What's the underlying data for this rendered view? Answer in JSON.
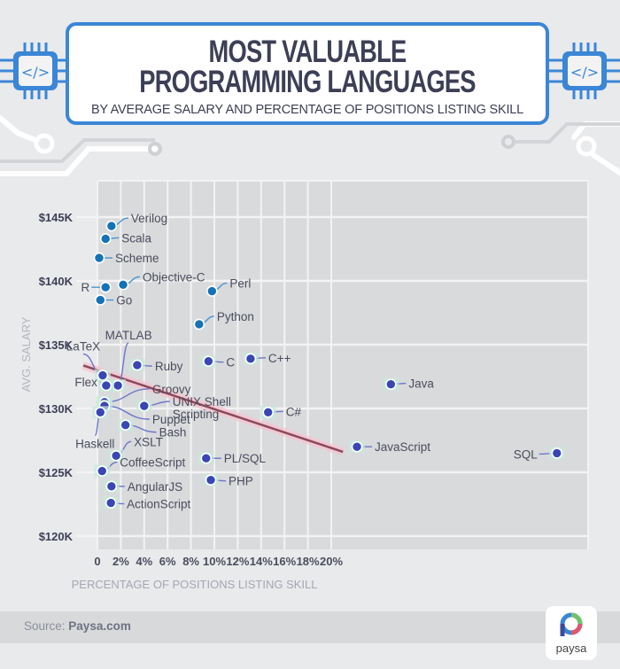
{
  "header": {
    "title_line1": "MOST VALUABLE",
    "title_line2": "PROGRAMMING LANGUAGES",
    "subtitle": "BY AVERAGE SALARY AND PERCENTAGE OF POSITIONS LISTING SKILL",
    "chip_icon_label": "</>"
  },
  "footer": {
    "source_prefix": "Source:",
    "source_name": "Paysa.com",
    "logo_text": "paysa"
  },
  "colors": {
    "accent": "#3b86d6",
    "title": "#3c3f55",
    "dot_light": "#1572b6",
    "dot_dark": "#3a46b3",
    "trendline": "#8a4a5c",
    "trend_glow": "#f6c4d2",
    "plot_bg": "#d9dadc",
    "grid": "#f3f3f4"
  },
  "chart_data": {
    "type": "scatter",
    "title": "Most Valuable Programming Languages",
    "subtitle": "By average salary and percentage of positions listing skill",
    "xlabel": "PERCENTAGE OF POSITIONS LISTING SKILL",
    "ylabel": "AVG. SALARY",
    "xlim": [
      0,
      21
    ],
    "ylim": [
      120,
      147
    ],
    "x_ticks": [
      0,
      2,
      4,
      6,
      8,
      10,
      12,
      14,
      16,
      18,
      20
    ],
    "x_tick_labels": [
      "0",
      "2%",
      "4%",
      "6%",
      "8%",
      "10%",
      "12%",
      "14%",
      "16%",
      "18%",
      "20%"
    ],
    "y_ticks": [
      120,
      125,
      130,
      135,
      140,
      145
    ],
    "y_tick_labels": [
      "$120K",
      "$125K",
      "$130K",
      "$135K",
      "$140K",
      "$145K"
    ],
    "grid": true,
    "points": [
      {
        "name": "Verilog",
        "x": 1.2,
        "y": 144.3
      },
      {
        "name": "Scala",
        "x": 0.7,
        "y": 143.3
      },
      {
        "name": "Scheme",
        "x": 0.15,
        "y": 141.8
      },
      {
        "name": "Objective-C",
        "x": 2.2,
        "y": 139.7
      },
      {
        "name": "R",
        "x": 0.7,
        "y": 139.5
      },
      {
        "name": "Perl",
        "x": 9.8,
        "y": 139.2
      },
      {
        "name": "Go",
        "x": 0.25,
        "y": 138.5
      },
      {
        "name": "Python",
        "x": 8.7,
        "y": 136.6
      },
      {
        "name": "C",
        "x": 9.5,
        "y": 133.7
      },
      {
        "name": "C++",
        "x": 13.1,
        "y": 133.9
      },
      {
        "name": "Ruby",
        "x": 3.4,
        "y": 133.4
      },
      {
        "name": "LaTeX",
        "x": 0.45,
        "y": 132.6
      },
      {
        "name": "MATLAB",
        "x": 1.75,
        "y": 131.8
      },
      {
        "name": "Flex",
        "x": 0.75,
        "y": 131.8
      },
      {
        "name": "Java",
        "x": 25.1,
        "y": 131.9
      },
      {
        "name": "Groovy",
        "x": 0.6,
        "y": 130.5
      },
      {
        "name": "Puppet",
        "x": 0.6,
        "y": 130.2
      },
      {
        "name": "UNIX Shell Scripting",
        "x": 4.0,
        "y": 130.2
      },
      {
        "name": "Haskell",
        "x": 0.25,
        "y": 129.7
      },
      {
        "name": "C#",
        "x": 14.6,
        "y": 129.7
      },
      {
        "name": "Bash",
        "x": 2.4,
        "y": 128.7
      },
      {
        "name": "JavaScript",
        "x": 22.2,
        "y": 127.0
      },
      {
        "name": "SQL",
        "x": 39.3,
        "y": 126.5
      },
      {
        "name": "XSLT",
        "x": 1.6,
        "y": 126.3
      },
      {
        "name": "PL/SQL",
        "x": 9.3,
        "y": 126.1
      },
      {
        "name": "CoffeeScript",
        "x": 0.4,
        "y": 125.1
      },
      {
        "name": "PHP",
        "x": 9.7,
        "y": 124.4
      },
      {
        "name": "AngularJS",
        "x": 1.2,
        "y": 123.9
      },
      {
        "name": "ActionScript",
        "x": 1.15,
        "y": 122.6
      }
    ],
    "trendline": {
      "x": [
        0,
        21
      ],
      "y": [
        133.3,
        126.6
      ]
    },
    "legend": "none"
  }
}
